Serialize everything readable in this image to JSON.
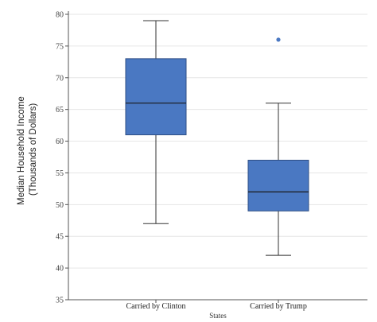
{
  "chart_data": {
    "type": "boxplot",
    "categories": [
      "Carried by Clinton",
      "Carried by Trump"
    ],
    "boxes": [
      {
        "category": "Carried by Clinton",
        "min": 47,
        "q1": 61,
        "median": 66,
        "q3": 73,
        "max": 79,
        "outliers": []
      },
      {
        "category": "Carried by Trump",
        "min": 42,
        "q1": 49,
        "median": 52,
        "q3": 57,
        "max": 66,
        "outliers": [
          76
        ]
      }
    ],
    "xlabel": "States",
    "ylabel": [
      "Median Household Income",
      "(Thousands of Dollars)"
    ],
    "ylim": [
      35,
      80
    ],
    "yticks": [
      35,
      40,
      45,
      50,
      55,
      60,
      65,
      70,
      75,
      80
    ],
    "grid": true,
    "colors": {
      "box_fill": "#4a78c2",
      "box_stroke": "#2f4f86",
      "whisker": "#333333",
      "outlier": "#4a78c2",
      "grid": "#e6e6e6",
      "axis": "#555555"
    }
  }
}
